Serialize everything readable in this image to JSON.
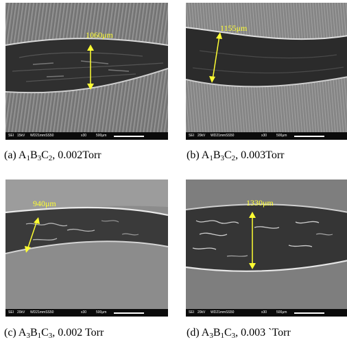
{
  "panels": [
    {
      "id": "a",
      "measurement": "1060μm",
      "infobar": {
        "mode": "SEI",
        "kv": "15kV",
        "wd": "WD21mmSS50",
        "mag": "x30",
        "scale": "500μm"
      },
      "caption": {
        "prefix": "(a)  A",
        "s1": "1",
        "t1": "B",
        "s2": "3",
        "t2": "C",
        "s3": "2",
        "suffix": ",  0.002Torr"
      }
    },
    {
      "id": "b",
      "measurement": "1155μm",
      "infobar": {
        "mode": "SEI",
        "kv": "20kV",
        "wd": "WD21mmSS50",
        "mag": "x30",
        "scale": "500μm"
      },
      "caption": {
        "prefix": "(b)  A",
        "s1": "1",
        "t1": "B",
        "s2": "3",
        "t2": "C",
        "s3": "2",
        "suffix": ",  0.003Torr"
      }
    },
    {
      "id": "c",
      "measurement": "940μm",
      "infobar": {
        "mode": "SEI",
        "kv": "20kV",
        "wd": "WD21mmSS50",
        "mag": "x30",
        "scale": "500μm"
      },
      "caption": {
        "prefix": "(c)  A",
        "s1": "3",
        "t1": "B",
        "s2": "1",
        "t2": "C",
        "s3": "3",
        "suffix": ",  0.002  Torr"
      }
    },
    {
      "id": "d",
      "measurement": "1330μm",
      "infobar": {
        "mode": "SEI",
        "kv": "20kV",
        "wd": "WD21mmSS50",
        "mag": "x30",
        "scale": "500μm"
      },
      "caption": {
        "prefix": "(d)  A",
        "s1": "3",
        "t1": "B",
        "s2": "1",
        "t2": "C",
        "s3": "3",
        "suffix": ",  0.003  `Torr"
      }
    }
  ],
  "colors": {
    "measure": "#ffff33",
    "track": "#2e2e2e",
    "surface": "#8a8a8a",
    "infobar": "#0b0b0b"
  }
}
